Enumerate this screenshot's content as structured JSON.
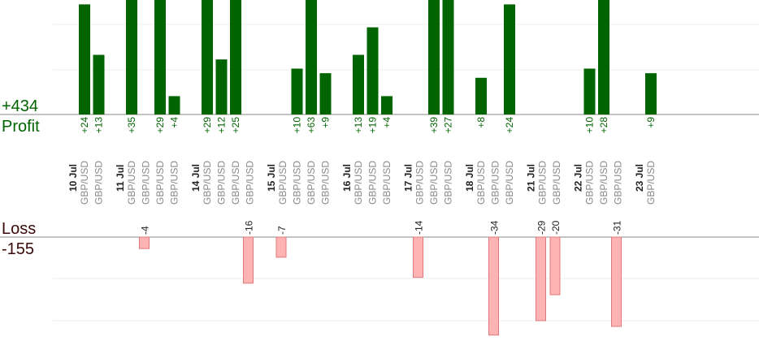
{
  "summary": {
    "profit_total": "+434",
    "profit_label": "Profit",
    "loss_label": "Loss",
    "loss_total": "-155"
  },
  "colors": {
    "profit_bar": "#006400",
    "loss_bar": "#ffb3b3",
    "loss_bar_border": "#e07a7a",
    "profit_text": "#006400",
    "loss_text": "#3a0a0a",
    "axis": "#888888",
    "grid": "#eeeeee"
  },
  "chart_data": {
    "type": "bar",
    "groups": [
      {
        "date": "10 Jul",
        "trades": [
          {
            "pair": "GBP/USD",
            "profit": 24,
            "label": "+24"
          },
          {
            "pair": "GBP/USD",
            "profit": 13,
            "label": "+13"
          }
        ]
      },
      {
        "date": "11 Jul",
        "trades": [
          {
            "pair": "GBP/USD",
            "profit": 35,
            "label": "+35"
          },
          {
            "pair": "GBP/USD",
            "profit": -4,
            "label": "-4"
          },
          {
            "pair": "GBP/USD",
            "profit": 29,
            "label": "+29"
          },
          {
            "pair": "GBP/USD",
            "profit": 4,
            "label": "+4"
          }
        ]
      },
      {
        "date": "14 Jul",
        "trades": [
          {
            "pair": "GBP/USD",
            "profit": 29,
            "label": "+29"
          },
          {
            "pair": "GBP/USD",
            "profit": 12,
            "label": "+12"
          },
          {
            "pair": "GBP/USD",
            "profit": 25,
            "label": "+25"
          },
          {
            "pair": "GBP/USD",
            "profit": -16,
            "label": "-16"
          }
        ]
      },
      {
        "date": "15 Jul",
        "trades": [
          {
            "pair": "GBP/USD",
            "profit": -7,
            "label": "-7"
          },
          {
            "pair": "GBP/USD",
            "profit": 10,
            "label": "+10"
          },
          {
            "pair": "GBP/USD",
            "profit": 63,
            "label": "+63"
          },
          {
            "pair": "GBP/USD",
            "profit": 9,
            "label": "+9"
          }
        ]
      },
      {
        "date": "16 Jul",
        "trades": [
          {
            "pair": "GBP/USD",
            "profit": 13,
            "label": "+13"
          },
          {
            "pair": "GBP/USD",
            "profit": 19,
            "label": "+19"
          },
          {
            "pair": "GBP/USD",
            "profit": 4,
            "label": "+4"
          }
        ]
      },
      {
        "date": "17 Jul",
        "trades": [
          {
            "pair": "GBP/USD",
            "profit": -14,
            "label": "-14"
          },
          {
            "pair": "GBP/USD",
            "profit": 39,
            "label": "+39"
          },
          {
            "pair": "GBP/USD",
            "profit": 27,
            "label": "+27"
          }
        ]
      },
      {
        "date": "18 Jul",
        "trades": [
          {
            "pair": "GBP/USD",
            "profit": 8,
            "label": "+8"
          },
          {
            "pair": "GBP/USD",
            "profit": -34,
            "label": "-34"
          },
          {
            "pair": "GBP/USD",
            "profit": 24,
            "label": "+24"
          }
        ]
      },
      {
        "date": "21 Jul",
        "trades": [
          {
            "pair": "GBP/USD",
            "profit": -29,
            "label": "-29"
          },
          {
            "pair": "GBP/USD",
            "profit": -20,
            "label": "-20"
          }
        ]
      },
      {
        "date": "22 Jul",
        "trades": [
          {
            "pair": "GBP/USD",
            "profit": 10,
            "label": "+10"
          },
          {
            "pair": "GBP/USD",
            "profit": 28,
            "label": "+28"
          },
          {
            "pair": "GBP/USD",
            "profit": -31,
            "label": "-31"
          }
        ]
      },
      {
        "date": "23 Jul",
        "trades": [
          {
            "pair": "GBP/USD",
            "profit": 9,
            "label": "+9"
          }
        ]
      }
    ],
    "profit_axis_max": 24,
    "loss_axis_max": 32,
    "grid": true
  }
}
